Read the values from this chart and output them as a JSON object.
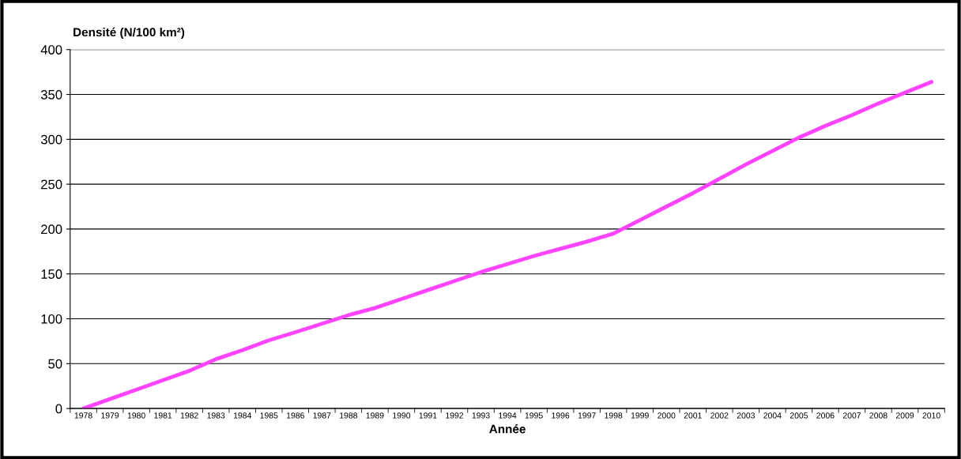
{
  "chart_data": {
    "type": "line",
    "ylabel": "Densité (N/100 km²)",
    "xlabel": "Année",
    "categories": [
      "1978",
      "1979",
      "1980",
      "1981",
      "1982",
      "1983",
      "1984",
      "1985",
      "1986",
      "1987",
      "1988",
      "1989",
      "1990",
      "1991",
      "1992",
      "1993",
      "1994",
      "1995",
      "1996",
      "1997",
      "1998",
      "1999",
      "2000",
      "2001",
      "2002",
      "2003",
      "2004",
      "2005",
      "2006",
      "2007",
      "2008",
      "2009",
      "2010"
    ],
    "series": [
      {
        "color": "#ff44ff",
        "values": [
          0,
          10.5,
          21,
          31.5,
          42,
          55,
          65,
          76,
          85,
          94.5,
          104,
          112,
          122,
          132,
          142,
          152,
          161,
          170,
          178,
          186,
          195,
          210,
          225,
          240,
          256,
          272,
          287,
          302,
          315,
          327,
          340,
          352,
          364
        ]
      }
    ],
    "ylim": [
      0,
      400
    ],
    "yticks": [
      0,
      50,
      100,
      150,
      200,
      250,
      300,
      350,
      400
    ],
    "grid": "y",
    "marker": "none",
    "line_style": "solid",
    "legend": false
  }
}
